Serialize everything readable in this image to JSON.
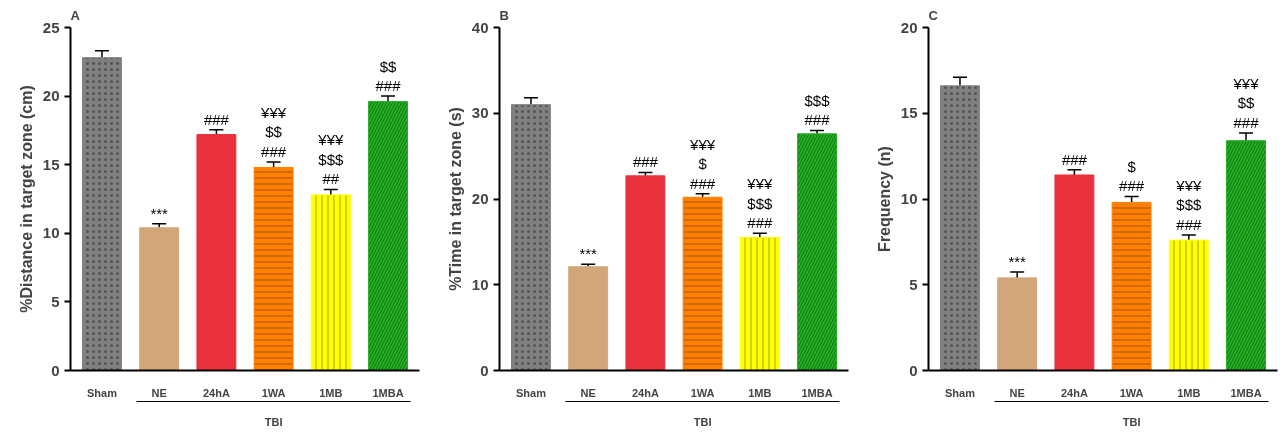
{
  "chart_data": [
    {
      "type": "bar",
      "title": "A",
      "ylabel": "%Distance in target zone (cm)",
      "categories": [
        "Sham",
        "NE",
        "24hA",
        "1WA",
        "1MB",
        "1MBA"
      ],
      "values": [
        22.8,
        10.4,
        17.2,
        14.8,
        12.8,
        19.6
      ],
      "errors": [
        0.5,
        0.3,
        0.35,
        0.4,
        0.4,
        0.4
      ],
      "value_labels": [
        null,
        "***",
        "###",
        "¥¥¥\n$$\n###",
        "¥¥¥\n$$$\n##",
        "$$\n###"
      ],
      "colors": [
        "#808080",
        "#d2a679",
        "#e8313a",
        "#ff8000",
        "#ffff00",
        "#22b022"
      ],
      "ylim": [
        0,
        25
      ],
      "yticks": [
        0,
        5,
        10,
        15,
        20,
        25
      ],
      "grid": false,
      "annotations": [
        "TBI"
      ]
    },
    {
      "type": "bar",
      "title": "B",
      "ylabel": "%Time in target zone (s)",
      "categories": [
        "Sham",
        "NE",
        "24hA",
        "1WA",
        "1MB",
        "1MBA"
      ],
      "values": [
        31.0,
        12.1,
        22.7,
        20.2,
        15.5,
        27.6
      ],
      "errors": [
        0.8,
        0.3,
        0.4,
        0.4,
        0.5,
        0.4
      ],
      "value_labels": [
        null,
        "***",
        "###",
        "¥¥¥\n$\n###",
        "¥¥¥\n$$$\n###",
        "$$$\n###"
      ],
      "colors": [
        "#808080",
        "#d2a679",
        "#e8313a",
        "#ff8000",
        "#ffff00",
        "#22b022"
      ],
      "ylim": [
        0,
        40
      ],
      "yticks": [
        0,
        10,
        20,
        30,
        40
      ],
      "grid": false,
      "annotations": [
        "TBI"
      ]
    },
    {
      "type": "bar",
      "title": "C",
      "ylabel": "Frequency (n)",
      "categories": [
        "Sham",
        "NE",
        "24hA",
        "1WA",
        "1MB",
        "1MBA"
      ],
      "values": [
        16.6,
        5.4,
        11.4,
        9.8,
        7.6,
        13.4
      ],
      "errors": [
        0.5,
        0.35,
        0.3,
        0.35,
        0.3,
        0.45
      ],
      "value_labels": [
        null,
        "***",
        "###",
        "$\n###",
        "¥¥¥\n$$$\n###",
        "¥¥¥\n$$\n###"
      ],
      "colors": [
        "#808080",
        "#d2a679",
        "#e8313a",
        "#ff8000",
        "#ffff00",
        "#22b022"
      ],
      "ylim": [
        0,
        20
      ],
      "yticks": [
        0,
        5,
        10,
        15,
        20
      ],
      "grid": false,
      "annotations": [
        "TBI"
      ]
    }
  ]
}
